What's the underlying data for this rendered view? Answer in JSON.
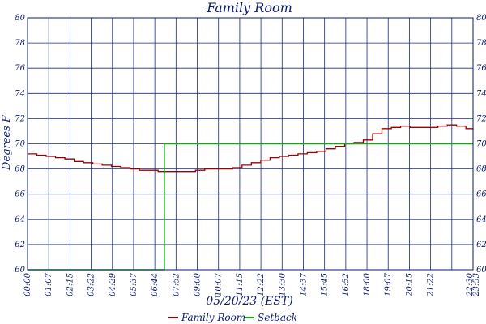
{
  "chart_data": {
    "type": "line",
    "title": "Family Room",
    "xlabel": "05/20/23 (EST)",
    "ylabel": "Degrees F",
    "ylim": [
      60,
      80
    ],
    "yticks": [
      "60",
      "62",
      "64",
      "66",
      "68",
      "70",
      "72",
      "74",
      "76",
      "78",
      "80"
    ],
    "xlim_minutes": [
      0,
      1433
    ],
    "xticks": [
      "00:00",
      "01:07",
      "02:15",
      "03:22",
      "04:29",
      "05:37",
      "06:44",
      "07:52",
      "09:00",
      "10:07",
      "11:15",
      "12:22",
      "13:30",
      "14:37",
      "15:45",
      "16:52",
      "18:00",
      "19:07",
      "20:15",
      "21:22",
      "22:30",
      "23:53"
    ],
    "grid": true,
    "legend_position": "bottom-center",
    "series": [
      {
        "name": "Family Room",
        "color": "#990000",
        "x_minutes": [
          0,
          30,
          60,
          90,
          120,
          150,
          180,
          210,
          240,
          270,
          300,
          330,
          360,
          390,
          420,
          450,
          480,
          510,
          540,
          570,
          600,
          630,
          660,
          690,
          720,
          750,
          780,
          810,
          840,
          870,
          900,
          930,
          960,
          990,
          1020,
          1050,
          1080,
          1110,
          1140,
          1170,
          1200,
          1230,
          1260,
          1290,
          1320,
          1350,
          1380,
          1410,
          1433
        ],
        "values": [
          69.2,
          69.1,
          69.0,
          68.9,
          68.8,
          68.6,
          68.5,
          68.4,
          68.3,
          68.2,
          68.1,
          68.0,
          67.9,
          67.9,
          67.8,
          67.8,
          67.8,
          67.8,
          67.9,
          68.0,
          68.0,
          68.0,
          68.1,
          68.3,
          68.5,
          68.7,
          68.9,
          69.0,
          69.1,
          69.2,
          69.3,
          69.4,
          69.6,
          69.8,
          70.0,
          70.1,
          70.3,
          70.8,
          71.2,
          71.3,
          71.4,
          71.3,
          71.3,
          71.3,
          71.4,
          71.5,
          71.4,
          71.2,
          71.1
        ]
      },
      {
        "name": "Setback",
        "color": "#11aa11",
        "x_minutes": [
          0,
          440,
          440,
          1433
        ],
        "values": [
          60,
          60,
          70,
          70
        ]
      }
    ]
  }
}
